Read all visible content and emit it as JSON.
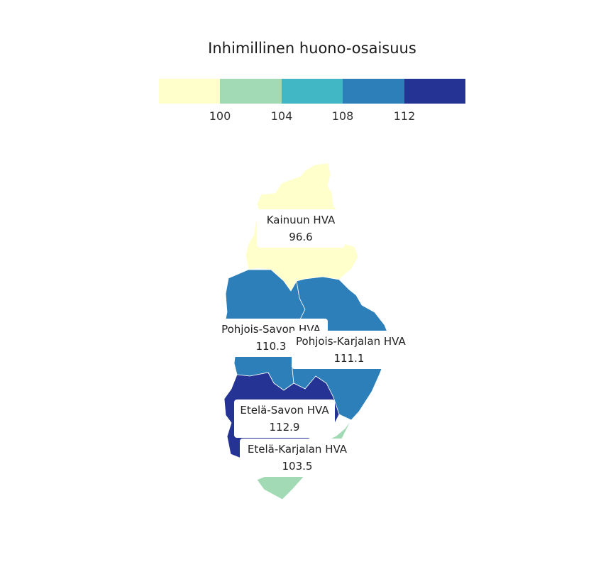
{
  "legend": {
    "title": "Inhimillinen huono-osaisuus",
    "colors": [
      "#ffffcc",
      "#a1dab4",
      "#41b6c4",
      "#2c7fb8",
      "#253494"
    ],
    "breaks": [
      "100",
      "104",
      "108",
      "112"
    ]
  },
  "regions": [
    {
      "id": "kainuu",
      "name": "Kainuun HVA",
      "value": "96.6",
      "color": "#ffffcc"
    },
    {
      "id": "pohjois-savo",
      "name": "Pohjois-Savon HVA",
      "value": "110.3",
      "color": "#2c7fb8"
    },
    {
      "id": "pohjois-karjala",
      "name": "Pohjois-Karjalan HVA",
      "value": "111.1",
      "color": "#2c7fb8"
    },
    {
      "id": "etela-savo",
      "name": "Etelä-Savon HVA",
      "value": "112.9",
      "color": "#253494"
    },
    {
      "id": "etela-karjala",
      "name": "Etelä-Karjalan HVA",
      "value": "103.5",
      "color": "#a1dab4"
    }
  ]
}
